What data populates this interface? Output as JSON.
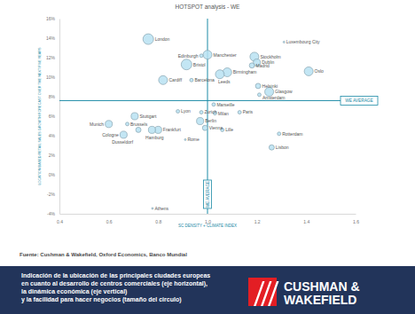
{
  "chart_data": {
    "type": "bubble",
    "title": "HOTSPOT analysis - WE",
    "x_label": "SC DENSITY + CLIMATE INDEX",
    "y_label": "LOCATION BASED RETAIL SALES GROWTH FORECAST OVER THE NEXT FIVE YEARS",
    "labels": [
      "London",
      "Luxembourg City",
      "Manchester",
      "Edinburgh",
      "Bristol",
      "Stockholm",
      "Dublin",
      "Madrid",
      "Oslo",
      "Birmingham",
      "Leeds",
      "Barcelona",
      "Cardiff",
      "Helsinki",
      "Glasgow",
      "Amsterdam",
      "Marseille",
      "Lyon",
      "Zurich",
      "Milan",
      "Paris",
      "Stuttgart",
      "Berlin",
      "Brussels",
      "Munich",
      "Vienna",
      "Lille",
      "Frankfurt",
      "Hamburg",
      "Dusseldorf",
      "Cologne",
      "Rotterdam",
      "Rome",
      "Lisbon",
      "Athens"
    ],
    "x": [
      0.76,
      1.31,
      1.0,
      0.975,
      0.915,
      1.19,
      1.2,
      1.18,
      1.41,
      1.08,
      1.05,
      0.935,
      0.82,
      1.205,
      1.25,
      1.21,
      1.025,
      0.88,
      0.975,
      1.03,
      1.13,
      0.705,
      0.97,
      0.675,
      0.6,
      0.99,
      1.06,
      0.8,
      0.775,
      0.72,
      0.66,
      1.29,
      0.91,
      1.26,
      0.777
    ],
    "values": [
      13.9,
      13.6,
      12.3,
      12.2,
      11.3,
      12.1,
      11.5,
      11.2,
      10.6,
      10.5,
      10.3,
      9.7,
      9.7,
      9.1,
      8.5,
      8.2,
      7.2,
      6.5,
      6.4,
      6.3,
      6.4,
      6.0,
      5.5,
      5.2,
      5.2,
      4.8,
      4.6,
      4.6,
      4.6,
      4.6,
      4.1,
      4.2,
      3.6,
      2.8,
      -3.45
    ],
    "sizes": [
      7.3,
      0.2,
      5.1,
      0.8,
      7.3,
      5.1,
      3.3,
      1.8,
      5.1,
      5.1,
      5.1,
      0.8,
      5.1,
      1.8,
      5.1,
      0.8,
      0.8,
      0.8,
      0.8,
      0.8,
      0.8,
      3.3,
      3.3,
      0.8,
      3.3,
      1.8,
      0.8,
      3.3,
      3.3,
      1.8,
      3.3,
      0.8,
      0.2,
      1.8,
      0.2
    ],
    "color": "#b9e2f2",
    "xlim": [
      0.4,
      1.6
    ],
    "ylim": [
      -4,
      16
    ],
    "xticks": [
      0.4,
      0.6,
      0.8,
      {
        "value": 1,
        "label": "1.0"
      },
      1.2,
      1.4,
      1.6
    ],
    "yticks": [
      {
        "value": -4,
        "label": "-4%"
      },
      {
        "value": -2,
        "label": "-2%"
      },
      {
        "value": 0,
        "label": "0%"
      },
      {
        "value": 2,
        "label": "2%"
      },
      {
        "value": 4,
        "label": "4%"
      },
      {
        "value": 6,
        "label": "6%"
      },
      {
        "value": 8,
        "label": "8%"
      },
      {
        "value": 10,
        "label": "10%"
      },
      {
        "value": 12,
        "label": "12%"
      },
      {
        "value": 14,
        "label": "14%"
      },
      {
        "value": 16,
        "label": "16%"
      }
    ],
    "reference_lines": [
      {
        "axis": "x",
        "value": 1.0,
        "label": "WE AVERAGE"
      },
      {
        "axis": "y",
        "value": 7.6,
        "label": "WE AVERAGE"
      }
    ],
    "grid": false
  },
  "source": "Fuente: Cushman & Wakefield, Oxford Economics, Banco Mundial",
  "caption": [
    "Indicación de la ubicación de las principales ciudades europeas",
    "en cuanto al desarrollo de centros comerciales (eje horizontal),",
    "la dinámica económica (eje vertical)",
    "y la facilidad para hacer negocios (tamaño del circulo)"
  ],
  "logo": [
    "CUSHMAN &",
    "WAKEFIELD"
  ]
}
